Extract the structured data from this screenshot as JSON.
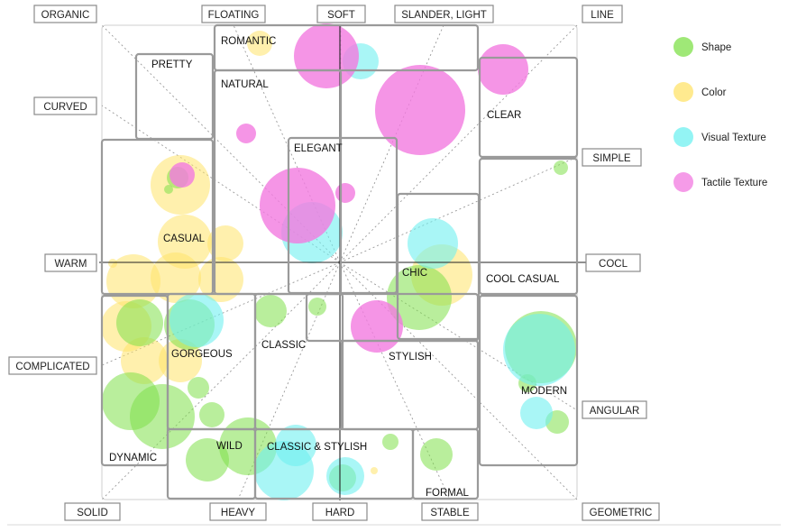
{
  "colors": {
    "shape": "#7fe04a",
    "color": "#ffe36a",
    "visual_texture": "#6ff0f0",
    "tactile_texture": "#f27ae0"
  },
  "legend": [
    {
      "key": "shape",
      "label": "Shape"
    },
    {
      "key": "color",
      "label": "Color"
    },
    {
      "key": "visual_texture",
      "label": "Visual Texture"
    },
    {
      "key": "tactile_texture",
      "label": "Tactile Texture"
    }
  ],
  "axis_labels": {
    "organic": "ORGANIC",
    "floating": "FLOATING",
    "soft": "SOFT",
    "slander_light": "SLANDER, LIGHT",
    "line": "LINE",
    "curved": "CURVED",
    "simple": "SIMPLE",
    "warm": "WARM",
    "cool": "COCL",
    "complicated": "COMPLICATED",
    "angular": "ANGULAR",
    "solid": "SOLID",
    "heavy": "HEAVY",
    "hard": "HARD",
    "stable": "STABLE",
    "geometric": "GEOMETRIC"
  },
  "regions": {
    "romantic": "ROMANTIC",
    "pretty": "PRETTY",
    "natural": "NATURAL",
    "clear": "CLEAR",
    "elegant": "ELEGANT",
    "casual": "CASUAL",
    "chic": "CHIC",
    "cool_casual": "COOL CASUAL",
    "classic": "CLASSIC",
    "gorgeous": "GORGEOUS",
    "stylish": "STYLISH",
    "modern": "MODERN",
    "dynamic": "DYNAMIC",
    "wild": "WILD",
    "classic_stylish": "CLASSIC & STYLISH",
    "formal": "FORMAL"
  }
}
